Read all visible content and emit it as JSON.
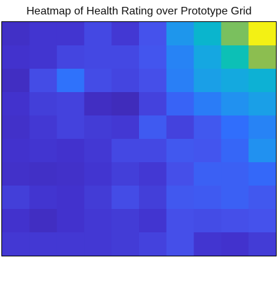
{
  "chart_data": {
    "type": "heatmap",
    "title": "Heatmap of Health Rating over Prototype Grid",
    "xlabel": "",
    "ylabel": "",
    "rows": 10,
    "cols": 10,
    "grid": false,
    "colormap": "parula",
    "values": [
      [
        0.08,
        0.11,
        0.11,
        0.17,
        0.12,
        0.2,
        0.42,
        0.55,
        0.78,
        0.98
      ],
      [
        0.1,
        0.11,
        0.16,
        0.17,
        0.17,
        0.21,
        0.36,
        0.48,
        0.62,
        0.8
      ],
      [
        0.07,
        0.18,
        0.31,
        0.18,
        0.16,
        0.19,
        0.35,
        0.45,
        0.49,
        0.53
      ],
      [
        0.1,
        0.14,
        0.15,
        0.07,
        0.05,
        0.15,
        0.26,
        0.34,
        0.4,
        0.45
      ],
      [
        0.09,
        0.12,
        0.15,
        0.13,
        0.12,
        0.23,
        0.15,
        0.22,
        0.3,
        0.36
      ],
      [
        0.1,
        0.11,
        0.1,
        0.12,
        0.17,
        0.17,
        0.22,
        0.21,
        0.27,
        0.4
      ],
      [
        0.09,
        0.08,
        0.09,
        0.11,
        0.14,
        0.12,
        0.19,
        0.25,
        0.25,
        0.28
      ],
      [
        0.14,
        0.11,
        0.1,
        0.13,
        0.18,
        0.14,
        0.22,
        0.23,
        0.25,
        0.22
      ],
      [
        0.1,
        0.07,
        0.1,
        0.12,
        0.13,
        0.11,
        0.19,
        0.18,
        0.19,
        0.2
      ],
      [
        0.12,
        0.12,
        0.12,
        0.12,
        0.13,
        0.15,
        0.19,
        0.11,
        0.1,
        0.13
      ]
    ]
  }
}
